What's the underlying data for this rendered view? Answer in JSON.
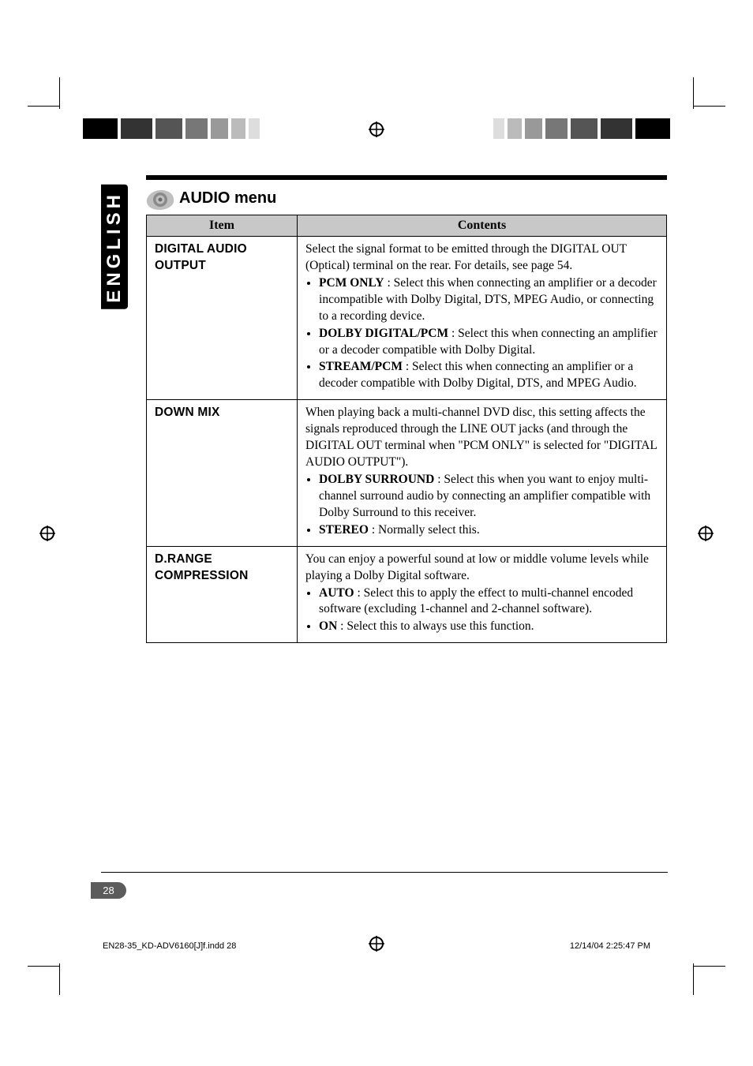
{
  "lang_tab": "ENGLISH",
  "section_title": "AUDIO menu",
  "table": {
    "headers": {
      "item": "Item",
      "contents": "Contents"
    },
    "rows": [
      {
        "item": "DIGITAL AUDIO OUTPUT",
        "intro": "Select the signal format to be emitted through the DIGITAL OUT (Optical) terminal on the rear. For details, see page 54.",
        "bullets": [
          {
            "lead": "PCM ONLY",
            "rest": " : Select this when connecting an amplifier or a decoder incompatible with Dolby Digital, DTS, MPEG Audio, or connecting to a recording device."
          },
          {
            "lead": "DOLBY DIGITAL/PCM",
            "rest": " : Select this when connecting an amplifier or a decoder compatible with Dolby Digital."
          },
          {
            "lead": "STREAM/PCM",
            "rest": " : Select this when connecting an amplifier or a decoder compatible with Dolby Digital, DTS, and MPEG Audio."
          }
        ]
      },
      {
        "item": "DOWN MIX",
        "intro": "When playing back a multi-channel DVD disc, this setting affects the signals reproduced through the LINE OUT jacks (and through the DIGITAL OUT terminal when \"PCM ONLY\" is selected for \"DIGITAL AUDIO OUTPUT\").",
        "bullets": [
          {
            "lead": "DOLBY SURROUND",
            "rest": " : Select this when you want to enjoy multi-channel surround audio by connecting an amplifier compatible with Dolby Surround to this receiver."
          },
          {
            "lead": "STEREO",
            "rest": " : Normally select this."
          }
        ]
      },
      {
        "item": "D.RANGE COMPRESSION",
        "intro": "You can enjoy a powerful sound at low or middle volume levels while playing a Dolby Digital software.",
        "bullets": [
          {
            "lead": "AUTO",
            "rest": " : Select this to apply the effect to multi-channel encoded software (excluding 1-channel and 2-channel software)."
          },
          {
            "lead": "ON",
            "rest": " : Select this to always use this function."
          }
        ]
      }
    ]
  },
  "page_number": "28",
  "footer_left": "EN28-35_KD-ADV6160[J]f.indd   28",
  "footer_right": "12/14/04   2:25:47 PM",
  "print_bar_colors_left": [
    "#000000",
    "#ffffff",
    "#333333",
    "#ffffff",
    "#555555",
    "#ffffff",
    "#777777",
    "#ffffff",
    "#999999",
    "#ffffff",
    "#bbbbbb",
    "#ffffff",
    "#dddddd"
  ],
  "print_bar_colors_right": [
    "#000000",
    "#ffffff",
    "#333333",
    "#ffffff",
    "#555555",
    "#ffffff",
    "#777777",
    "#ffffff",
    "#999999",
    "#ffffff",
    "#bbbbbb",
    "#ffffff",
    "#dddddd"
  ],
  "print_bar_widths": [
    44,
    4,
    40,
    4,
    34,
    4,
    28,
    4,
    22,
    4,
    18,
    4,
    14
  ]
}
